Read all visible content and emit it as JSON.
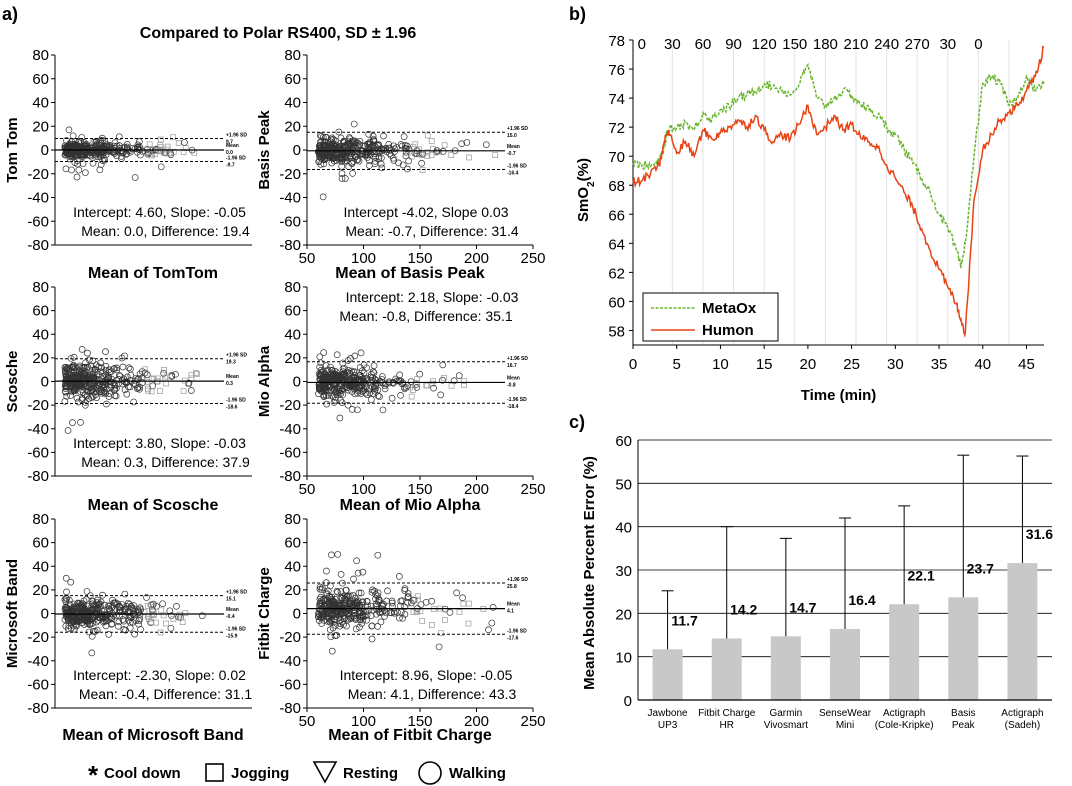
{
  "figure": {
    "panel_labels": [
      "a)",
      "b)",
      "c)"
    ],
    "legend_a": {
      "cool_down": "Cool down",
      "jogging": "Jogging",
      "resting": "Resting",
      "walking": "Walking"
    }
  },
  "chart_data": [
    {
      "id": "a",
      "type": "scatter",
      "title": "Compared to Polar RS400, SD ± 1.96",
      "subplots": [
        {
          "ylabel": "Tom Tom",
          "xlabel": "Mean of TomTom",
          "ylim": [
            -80,
            80
          ],
          "yticks": [
            80,
            60,
            40,
            20,
            0,
            -20,
            -40,
            -60,
            -80
          ],
          "xlim": [
            50,
            250
          ],
          "show_xticks": false,
          "upper_sd": 9.7,
          "lower_sd": -9.7,
          "mean": 0.0,
          "sd_labels": [
            "+1.96 SD",
            "9.7",
            "Mean",
            "0.0",
            "-1.96 SD",
            "-9.7"
          ],
          "annotations": [
            "Intercept: 4.60, Slope: -0.05",
            "Mean: 0.0, Difference: 19.4"
          ],
          "annot_pos": "bottom"
        },
        {
          "ylabel": "Basis Peak",
          "xlabel": "Mean of Basis Peak",
          "ylim": [
            -80,
            80
          ],
          "yticks": [
            80,
            60,
            40,
            20,
            0,
            -20,
            -40,
            -60,
            -80
          ],
          "xlim": [
            50,
            250
          ],
          "xticks": [
            50,
            100,
            150,
            200,
            250
          ],
          "show_xticks": true,
          "upper_sd": 15.0,
          "lower_sd": -16.4,
          "mean": -0.7,
          "sd_labels": [
            "+1.96 SD",
            "15.0",
            "Mean",
            "-0.7",
            "-1.96 SD",
            "-16.4"
          ],
          "annotations": [
            "Intercept -4.02, Slope 0.03",
            "Mean: -0.7, Difference: 31.4"
          ],
          "annot_pos": "bottom"
        },
        {
          "ylabel": "Scosche",
          "xlabel": "Mean of Scosche",
          "ylim": [
            -80,
            80
          ],
          "yticks": [
            80,
            60,
            40,
            20,
            0,
            -20,
            -40,
            -60,
            -80
          ],
          "xlim": [
            50,
            250
          ],
          "show_xticks": false,
          "upper_sd": 19.3,
          "lower_sd": -18.6,
          "mean": 0.3,
          "sd_labels": [
            "+1.96 SD",
            "19.3",
            "Mean",
            "0.3",
            "-1.96 SD",
            "-18.6"
          ],
          "annotations": [
            "Intercept: 3.80, Slope: -0.03",
            "Mean: 0.3, Difference: 37.9"
          ],
          "annot_pos": "bottom"
        },
        {
          "ylabel": "Mio Alpha",
          "xlabel": "Mean of Mio Alpha",
          "ylim": [
            -80,
            80
          ],
          "yticks": [
            80,
            60,
            40,
            20,
            0,
            -20,
            -40,
            -60,
            -80
          ],
          "xlim": [
            50,
            250
          ],
          "xticks": [
            50,
            100,
            150,
            200,
            250
          ],
          "show_xticks": true,
          "upper_sd": 16.7,
          "lower_sd": -18.4,
          "mean": -0.8,
          "sd_labels": [
            "+1.96 SD",
            "16.7",
            "Mean",
            "-0.8",
            "-1.96 SD",
            "-18.4"
          ],
          "annotations": [
            "Intercept: 2.18, Slope: -0.03",
            "Mean: -0.8, Difference: 35.1"
          ],
          "annot_pos": "top"
        },
        {
          "ylabel": "Microsoft Band",
          "xlabel": "Mean of Microsoft Band",
          "ylim": [
            -80,
            80
          ],
          "yticks": [
            80,
            60,
            40,
            20,
            0,
            -20,
            -40,
            -60,
            -80
          ],
          "xlim": [
            50,
            250
          ],
          "show_xticks": false,
          "upper_sd": 15.1,
          "lower_sd": -15.9,
          "mean": -0.4,
          "sd_labels": [
            "+1.96 SD",
            "15.1",
            "Mean",
            "-0.4",
            "-1.96 SD",
            "-15.9"
          ],
          "annotations": [
            "Intercept: -2.30, Slope: 0.02",
            "Mean: -0.4, Difference:  31.1"
          ],
          "annot_pos": "bottom"
        },
        {
          "ylabel": "Fitbit Charge",
          "xlabel": "Mean of Fitbit Charge",
          "ylim": [
            -80,
            80
          ],
          "yticks": [
            80,
            60,
            40,
            20,
            0,
            -20,
            -40,
            -60,
            -80
          ],
          "xlim": [
            50,
            250
          ],
          "xticks": [
            50,
            100,
            150,
            200,
            250
          ],
          "show_xticks": true,
          "upper_sd": 25.8,
          "lower_sd": -17.6,
          "mean": 4.1,
          "sd_labels": [
            "+1.96 SD",
            "25.8",
            "Mean",
            "4.1",
            "-1.96 SD",
            "-17.6"
          ],
          "annotations": [
            "Intercept: 8.96, Slope: -0.05",
            "Mean: 4.1, Difference: 43.3"
          ],
          "annot_pos": "bottom"
        }
      ]
    },
    {
      "id": "b",
      "type": "line",
      "xlabel": "Time (min)",
      "ylabel": "SmO2(%)",
      "xlim": [
        0,
        47
      ],
      "ylim": [
        57,
        78
      ],
      "xticks": [
        0,
        5,
        10,
        15,
        20,
        25,
        30,
        35,
        40,
        45
      ],
      "yticks": [
        58,
        60,
        62,
        64,
        66,
        68,
        70,
        72,
        74,
        76,
        78
      ],
      "top_labels": [
        "0",
        "30",
        "60",
        "90",
        "120",
        "150",
        "180",
        "210",
        "240",
        "270",
        "30",
        "0"
      ],
      "top_label_x": [
        1,
        4.5,
        8,
        11.5,
        15,
        18.5,
        22,
        25.5,
        29,
        32.5,
        36,
        39.5
      ],
      "vlines_x": [
        4.5,
        8,
        11.5,
        15,
        18.5,
        22,
        25.5,
        29,
        32.5,
        36,
        39.5,
        43
      ],
      "legend": [
        "MetaOx",
        "Humon"
      ],
      "series": [
        {
          "name": "MetaOx",
          "color": "#6ab42d",
          "style": "dashed",
          "x": [
            0,
            1,
            2,
            3,
            3.5,
            4,
            5,
            6,
            7,
            8,
            9,
            10,
            11,
            12,
            13,
            14,
            15,
            16,
            17,
            18,
            19,
            20,
            21,
            22,
            23,
            24,
            25,
            26,
            27,
            28,
            29,
            30,
            31,
            32,
            33,
            34,
            35,
            36,
            37,
            37.5,
            38,
            39,
            40,
            41,
            42,
            43,
            44,
            45,
            46,
            47
          ],
          "y": [
            69.5,
            69.4,
            69.3,
            69.6,
            70.5,
            71.8,
            72.0,
            72.3,
            71.8,
            73.0,
            72.5,
            73.2,
            73.4,
            74.0,
            74.2,
            74.5,
            75.0,
            74.8,
            74.6,
            74.2,
            75.0,
            76.3,
            74.0,
            73.5,
            74.0,
            74.5,
            74.2,
            73.6,
            73.2,
            72.8,
            72.0,
            71.5,
            70.5,
            69.5,
            68.5,
            67.5,
            66.0,
            65.0,
            63.5,
            62.3,
            64.0,
            70.0,
            75.0,
            75.5,
            75.0,
            73.5,
            74.0,
            75.5,
            74.5,
            75.0
          ]
        },
        {
          "name": "Humon",
          "color": "#e84314",
          "style": "solid",
          "x": [
            0,
            1,
            2,
            3,
            3.5,
            4,
            5,
            6,
            7,
            8,
            9,
            10,
            11,
            12,
            13,
            14,
            15,
            16,
            17,
            18,
            19,
            20,
            21,
            22,
            23,
            24,
            25,
            26,
            27,
            28,
            29,
            30,
            31,
            32,
            33,
            34,
            35,
            36,
            37,
            37.5,
            38,
            39,
            40,
            41,
            42,
            43,
            44,
            45,
            46,
            47
          ],
          "y": [
            68.2,
            68.3,
            68.8,
            69.4,
            70.8,
            71.8,
            70.2,
            71.0,
            70.0,
            71.8,
            71.2,
            71.6,
            72.0,
            72.5,
            72.0,
            72.8,
            71.8,
            71.0,
            71.5,
            71.2,
            72.2,
            73.5,
            71.5,
            72.0,
            72.8,
            71.8,
            72.2,
            71.3,
            71.0,
            70.6,
            69.4,
            68.5,
            67.5,
            66.5,
            65.0,
            63.5,
            62.2,
            61.0,
            59.8,
            58.8,
            57.8,
            67.0,
            70.5,
            71.5,
            72.5,
            73.0,
            73.5,
            74.5,
            75.5,
            77.5
          ]
        }
      ]
    },
    {
      "id": "c",
      "type": "bar",
      "ylabel": "Mean Absolute Percent Error (%)",
      "ylim": [
        0,
        60
      ],
      "yticks": [
        0,
        10,
        20,
        30,
        40,
        50,
        60
      ],
      "categories": [
        [
          "Jawbone",
          "UP3"
        ],
        [
          "Fitbit Charge",
          "HR"
        ],
        [
          "Garmin",
          "Vivosmart"
        ],
        [
          "SenseWear",
          "Mini"
        ],
        [
          "Actigraph",
          "(Cole-Kripke)"
        ],
        [
          "Basis",
          "Peak"
        ],
        [
          "Actigraph",
          "(Sadeh)"
        ]
      ],
      "values": [
        11.7,
        14.2,
        14.7,
        16.4,
        22.1,
        23.7,
        31.6
      ],
      "value_labels": [
        "11.7",
        "14.2",
        "14.7",
        "16.4",
        "22.1",
        "23.7",
        "31.6"
      ],
      "error_upper": [
        25.2,
        40.0,
        37.3,
        42.0,
        44.8,
        56.5,
        56.3
      ],
      "bar_color": "#c8c8c8"
    }
  ]
}
